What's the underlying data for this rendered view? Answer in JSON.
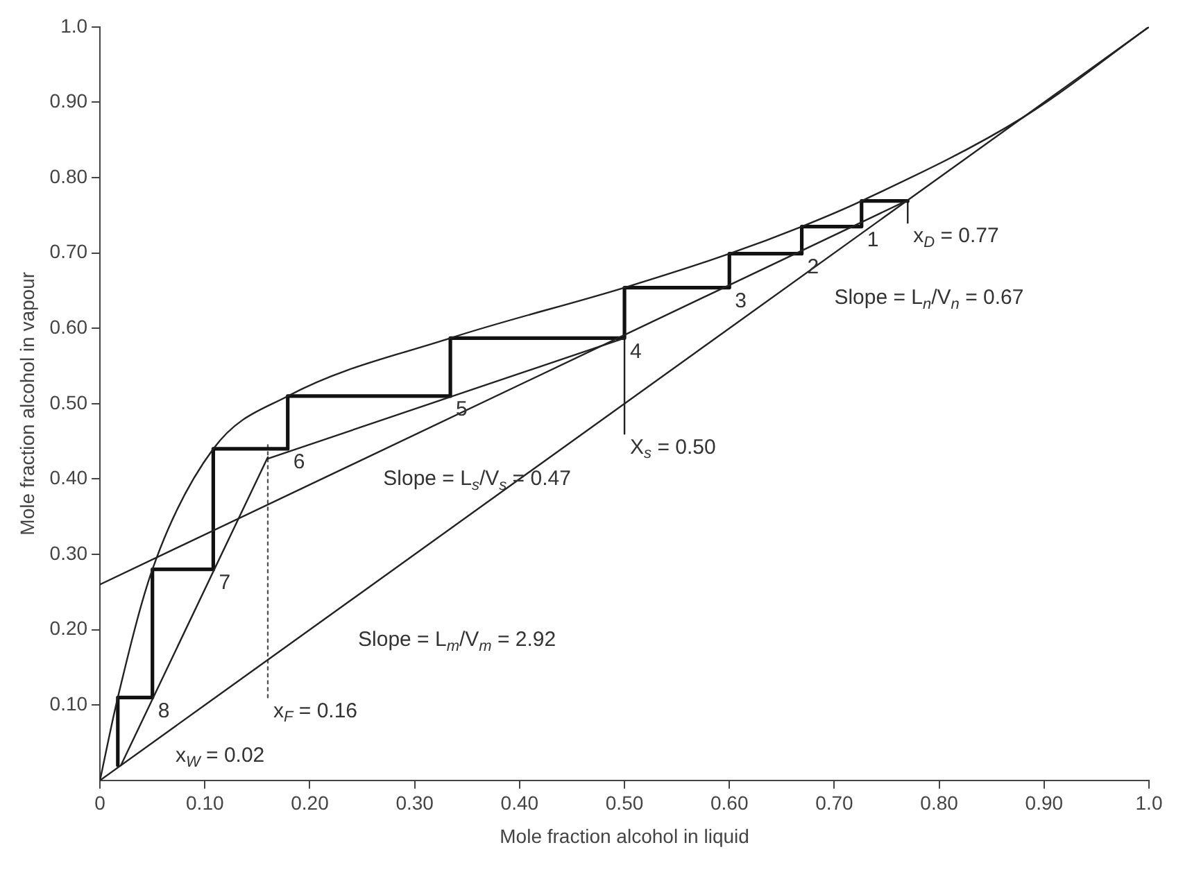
{
  "chart_data": {
    "type": "line",
    "xlabel": "Mole fraction alcohol in liquid",
    "ylabel": "Mole fraction alcohol in vapour",
    "xlim": [
      0,
      1
    ],
    "ylim": [
      0,
      1
    ],
    "xticks": [
      0,
      {
        "value": 0.1,
        "label": "0.10"
      },
      {
        "value": 0.2,
        "label": "0.20"
      },
      {
        "value": 0.3,
        "label": "0.30"
      },
      {
        "value": 0.4,
        "label": "0.40"
      },
      {
        "value": 0.5,
        "label": "0.50"
      },
      {
        "value": 0.6,
        "label": "0.60"
      },
      {
        "value": 0.7,
        "label": "0.70"
      },
      {
        "value": 0.8,
        "label": "0.80"
      },
      {
        "value": 0.9,
        "label": "0.90"
      },
      {
        "value": 1,
        "label": "1.0"
      }
    ],
    "yticks": [
      {
        "value": 0.1,
        "label": "0.10"
      },
      {
        "value": 0.2,
        "label": "0.20"
      },
      {
        "value": 0.3,
        "label": "0.30"
      },
      {
        "value": 0.4,
        "label": "0.40"
      },
      {
        "value": 0.5,
        "label": "0.50"
      },
      {
        "value": 0.6,
        "label": "0.60"
      },
      {
        "value": 0.7,
        "label": "0.70"
      },
      {
        "value": 0.8,
        "label": "0.80"
      },
      {
        "value": 0.9,
        "label": "0.90"
      },
      {
        "value": 1,
        "label": "1.0"
      }
    ],
    "grid": false,
    "legend": false,
    "marker": "none",
    "series": [
      {
        "color": "#222222",
        "x": [
          0,
          1
        ],
        "values": [
          0,
          1
        ]
      },
      {
        "color": "#222222",
        "x": [
          0,
          0.017,
          0.05,
          0.108,
          0.179,
          0.334,
          0.5,
          0.6,
          0.669,
          0.726,
          0.88,
          1
        ],
        "values": [
          0,
          0.11,
          0.28,
          0.44,
          0.51,
          0.587,
          0.654,
          0.699,
          0.735,
          0.769,
          0.88,
          1
        ]
      },
      {
        "color": "#222222",
        "x": [
          0,
          0.77
        ],
        "values": [
          0.26,
          0.77
        ]
      },
      {
        "color": "#222222",
        "x": [
          0.16,
          0.5
        ],
        "values": [
          0.427,
          0.587
        ]
      },
      {
        "color": "#222222",
        "x": [
          0.02,
          0.16
        ],
        "values": [
          0.02,
          0.429
        ]
      },
      {
        "type": "step",
        "color": "#111111",
        "x": [
          0.77,
          0.726,
          0.726,
          0.669,
          0.669,
          0.6,
          0.6,
          0.5,
          0.5,
          0.334,
          0.334,
          0.179,
          0.179,
          0.108,
          0.108,
          0.05,
          0.05,
          0.017,
          0.017
        ],
        "values": [
          0.769,
          0.769,
          0.735,
          0.735,
          0.699,
          0.699,
          0.654,
          0.654,
          0.587,
          0.587,
          0.51,
          0.51,
          0.44,
          0.44,
          0.28,
          0.28,
          0.11,
          0.11,
          0.02
        ]
      },
      {
        "color": "#555555",
        "line_style": "dotted",
        "x": [
          0.16,
          0.16
        ],
        "values": [
          0.11,
          0.45
        ]
      },
      {
        "color": "#222222",
        "x": [
          0.5,
          0.5
        ],
        "values": [
          0.46,
          0.587
        ]
      },
      {
        "color": "#222222",
        "x": [
          0.77,
          0.77
        ],
        "values": [
          0.74,
          0.77
        ]
      }
    ],
    "annotations": [
      {
        "text": "1",
        "x": 0.726,
        "y": 0.735
      },
      {
        "text": "2",
        "x": 0.669,
        "y": 0.699
      },
      {
        "text": "3",
        "x": 0.6,
        "y": 0.654
      },
      {
        "text": "4",
        "x": 0.5,
        "y": 0.587
      },
      {
        "text": "5",
        "x": 0.334,
        "y": 0.51
      },
      {
        "text": "6",
        "x": 0.179,
        "y": 0.44
      },
      {
        "text": "7",
        "x": 0.108,
        "y": 0.28
      },
      {
        "text": "8",
        "x": 0.05,
        "y": 0.11
      },
      {
        "text": "x$_{D}$ = 0.77",
        "x": 0.77,
        "y": 0.74
      },
      "Slope = L$_{n}$/V$_{n}$ = 0.67",
      {
        "text": "X$_{s}$ = 0.50",
        "x": 0.5,
        "y": 0.46
      },
      "Slope = L$_{s}$/V$_{s}$ = 0.47",
      "Slope = L$_{m}$/V$_{m}$ = 2.92",
      {
        "text": "x$_{F}$ = 0.16",
        "x": 0.16,
        "y": 0.11
      },
      "x$_{W}$ = 0.02"
    ]
  }
}
